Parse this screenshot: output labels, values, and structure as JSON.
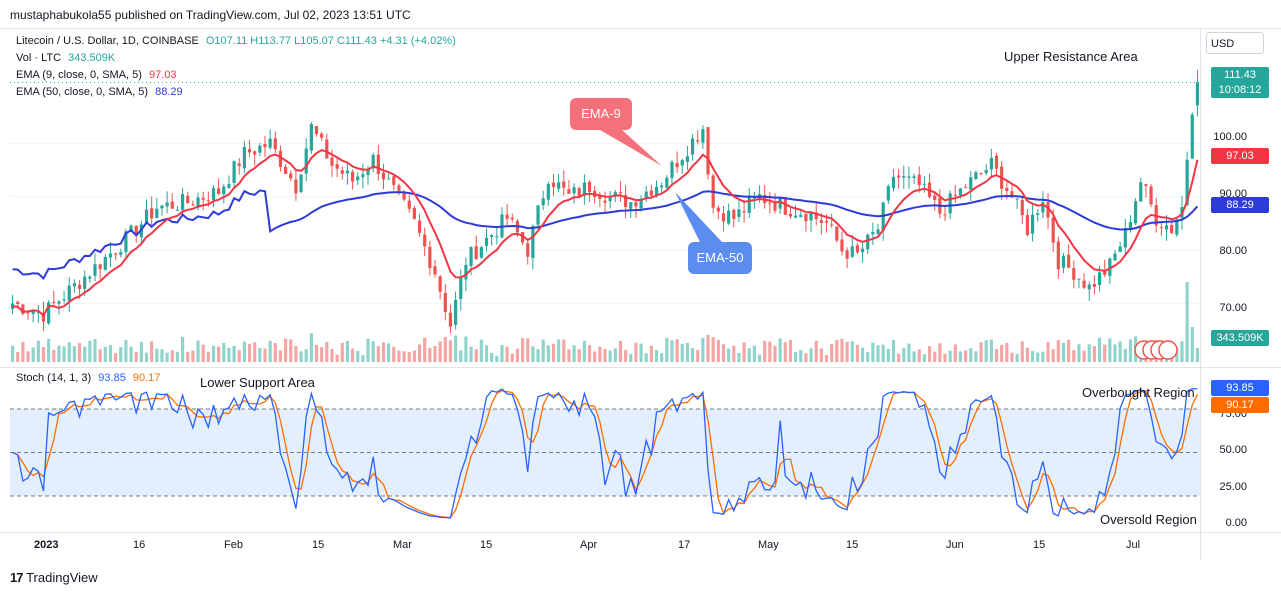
{
  "header": "mustaphabukola55 published on TradingView.com, Jul 02, 2023 13:51 UTC",
  "legend": {
    "symbol": "Litecoin / U.S. Dollar, 1D, COINBASE",
    "ohlc": "O107.11  H113.77  L105.07  C111.43  +4.31 (+4.02%)",
    "vol_label": "Vol · LTC",
    "vol_value": "343.509K",
    "ema9_label": "EMA (9, close, 0, SMA, 5)",
    "ema9_value": "97.03",
    "ema50_label": "EMA (50, close, 0, SMA, 5)",
    "ema50_value": "88.29",
    "stoch_label": "Stoch (14, 1, 3)",
    "stoch_k": "93.85",
    "stoch_d": "90.17"
  },
  "annotations": {
    "upper_resistance": "Upper Resistance Area",
    "lower_support": "Lower Support Area",
    "overbought": "Overbought Region",
    "oversold": "Oversold Region",
    "ema9_callout": "EMA-9",
    "ema50_callout": "EMA-50"
  },
  "price_axis": {
    "currency": "USD",
    "ticks": [
      "100.00",
      "90.00",
      "80.00",
      "70.00"
    ],
    "last_price": "111.43",
    "countdown": "10:08:12",
    "ema9_tag": "97.03",
    "ema50_tag": "88.29",
    "volume_tag": "343.509K"
  },
  "stoch_axis": {
    "ticks": [
      "75.00",
      "50.00",
      "25.00",
      "0.00"
    ],
    "k_tag": "93.85",
    "d_tag": "90.17"
  },
  "time_axis": [
    "2023",
    "16",
    "Feb",
    "15",
    "Mar",
    "15",
    "Apr",
    "17",
    "May",
    "15",
    "Jun",
    "15",
    "Jul"
  ],
  "footer": "TradingView",
  "colors": {
    "up": "#26a69a",
    "down": "#ef5350",
    "ema9": "#f23645",
    "ema50": "#2e3bd6",
    "stoch_k": "#2962ff",
    "stoch_d": "#ff6d00",
    "band": "#e3effd"
  },
  "chart_data": {
    "type": "candlestick",
    "last": {
      "open": 107.11,
      "high": 113.77,
      "low": 105.07,
      "close": 111.43,
      "change": 4.31,
      "change_pct": 4.02
    },
    "anchors": [
      {
        "x": 0,
        "close": 70
      },
      {
        "x": 6,
        "close": 68
      },
      {
        "x": 14,
        "close": 75
      },
      {
        "x": 22,
        "close": 82
      },
      {
        "x": 28,
        "close": 88
      },
      {
        "x": 34,
        "close": 89
      },
      {
        "x": 40,
        "close": 91
      },
      {
        "x": 45,
        "close": 98
      },
      {
        "x": 50,
        "close": 100
      },
      {
        "x": 55,
        "close": 92
      },
      {
        "x": 58,
        "close": 103
      },
      {
        "x": 62,
        "close": 96
      },
      {
        "x": 66,
        "close": 93
      },
      {
        "x": 70,
        "close": 97
      },
      {
        "x": 74,
        "close": 91
      },
      {
        "x": 78,
        "close": 85
      },
      {
        "x": 82,
        "close": 76
      },
      {
        "x": 85,
        "close": 66
      },
      {
        "x": 88,
        "close": 78
      },
      {
        "x": 92,
        "close": 82
      },
      {
        "x": 96,
        "close": 86
      },
      {
        "x": 100,
        "close": 80
      },
      {
        "x": 104,
        "close": 94
      },
      {
        "x": 108,
        "close": 90
      },
      {
        "x": 112,
        "close": 92
      },
      {
        "x": 116,
        "close": 90
      },
      {
        "x": 120,
        "close": 89
      },
      {
        "x": 126,
        "close": 93
      },
      {
        "x": 130,
        "close": 98
      },
      {
        "x": 134,
        "close": 103
      },
      {
        "x": 136,
        "close": 88
      },
      {
        "x": 140,
        "close": 86
      },
      {
        "x": 145,
        "close": 90
      },
      {
        "x": 150,
        "close": 88
      },
      {
        "x": 154,
        "close": 87
      },
      {
        "x": 158,
        "close": 85
      },
      {
        "x": 161,
        "close": 80
      },
      {
        "x": 164,
        "close": 79
      },
      {
        "x": 168,
        "close": 84
      },
      {
        "x": 171,
        "close": 94
      },
      {
        "x": 176,
        "close": 92
      },
      {
        "x": 180,
        "close": 87
      },
      {
        "x": 185,
        "close": 92
      },
      {
        "x": 190,
        "close": 96
      },
      {
        "x": 194,
        "close": 90
      },
      {
        "x": 197,
        "close": 84
      },
      {
        "x": 200,
        "close": 90
      },
      {
        "x": 203,
        "close": 78
      },
      {
        "x": 206,
        "close": 76
      },
      {
        "x": 209,
        "close": 73
      },
      {
        "x": 213,
        "close": 77
      },
      {
        "x": 216,
        "close": 83
      },
      {
        "x": 219,
        "close": 93
      },
      {
        "x": 222,
        "close": 86
      },
      {
        "x": 225,
        "close": 84
      },
      {
        "x": 227,
        "close": 88
      },
      {
        "x": 229,
        "close": 107
      },
      {
        "x": 230,
        "close": 111.43
      }
    ],
    "ema9": {
      "last": 97.03
    },
    "ema50": {
      "last": 88.29
    },
    "volume": {
      "last": "343.509K"
    },
    "stoch": {
      "k": 93.85,
      "d": 90.17,
      "bands": [
        20,
        50,
        80
      ],
      "range": [
        0,
        100
      ]
    },
    "price_range": [
      63.5,
      116
    ]
  }
}
